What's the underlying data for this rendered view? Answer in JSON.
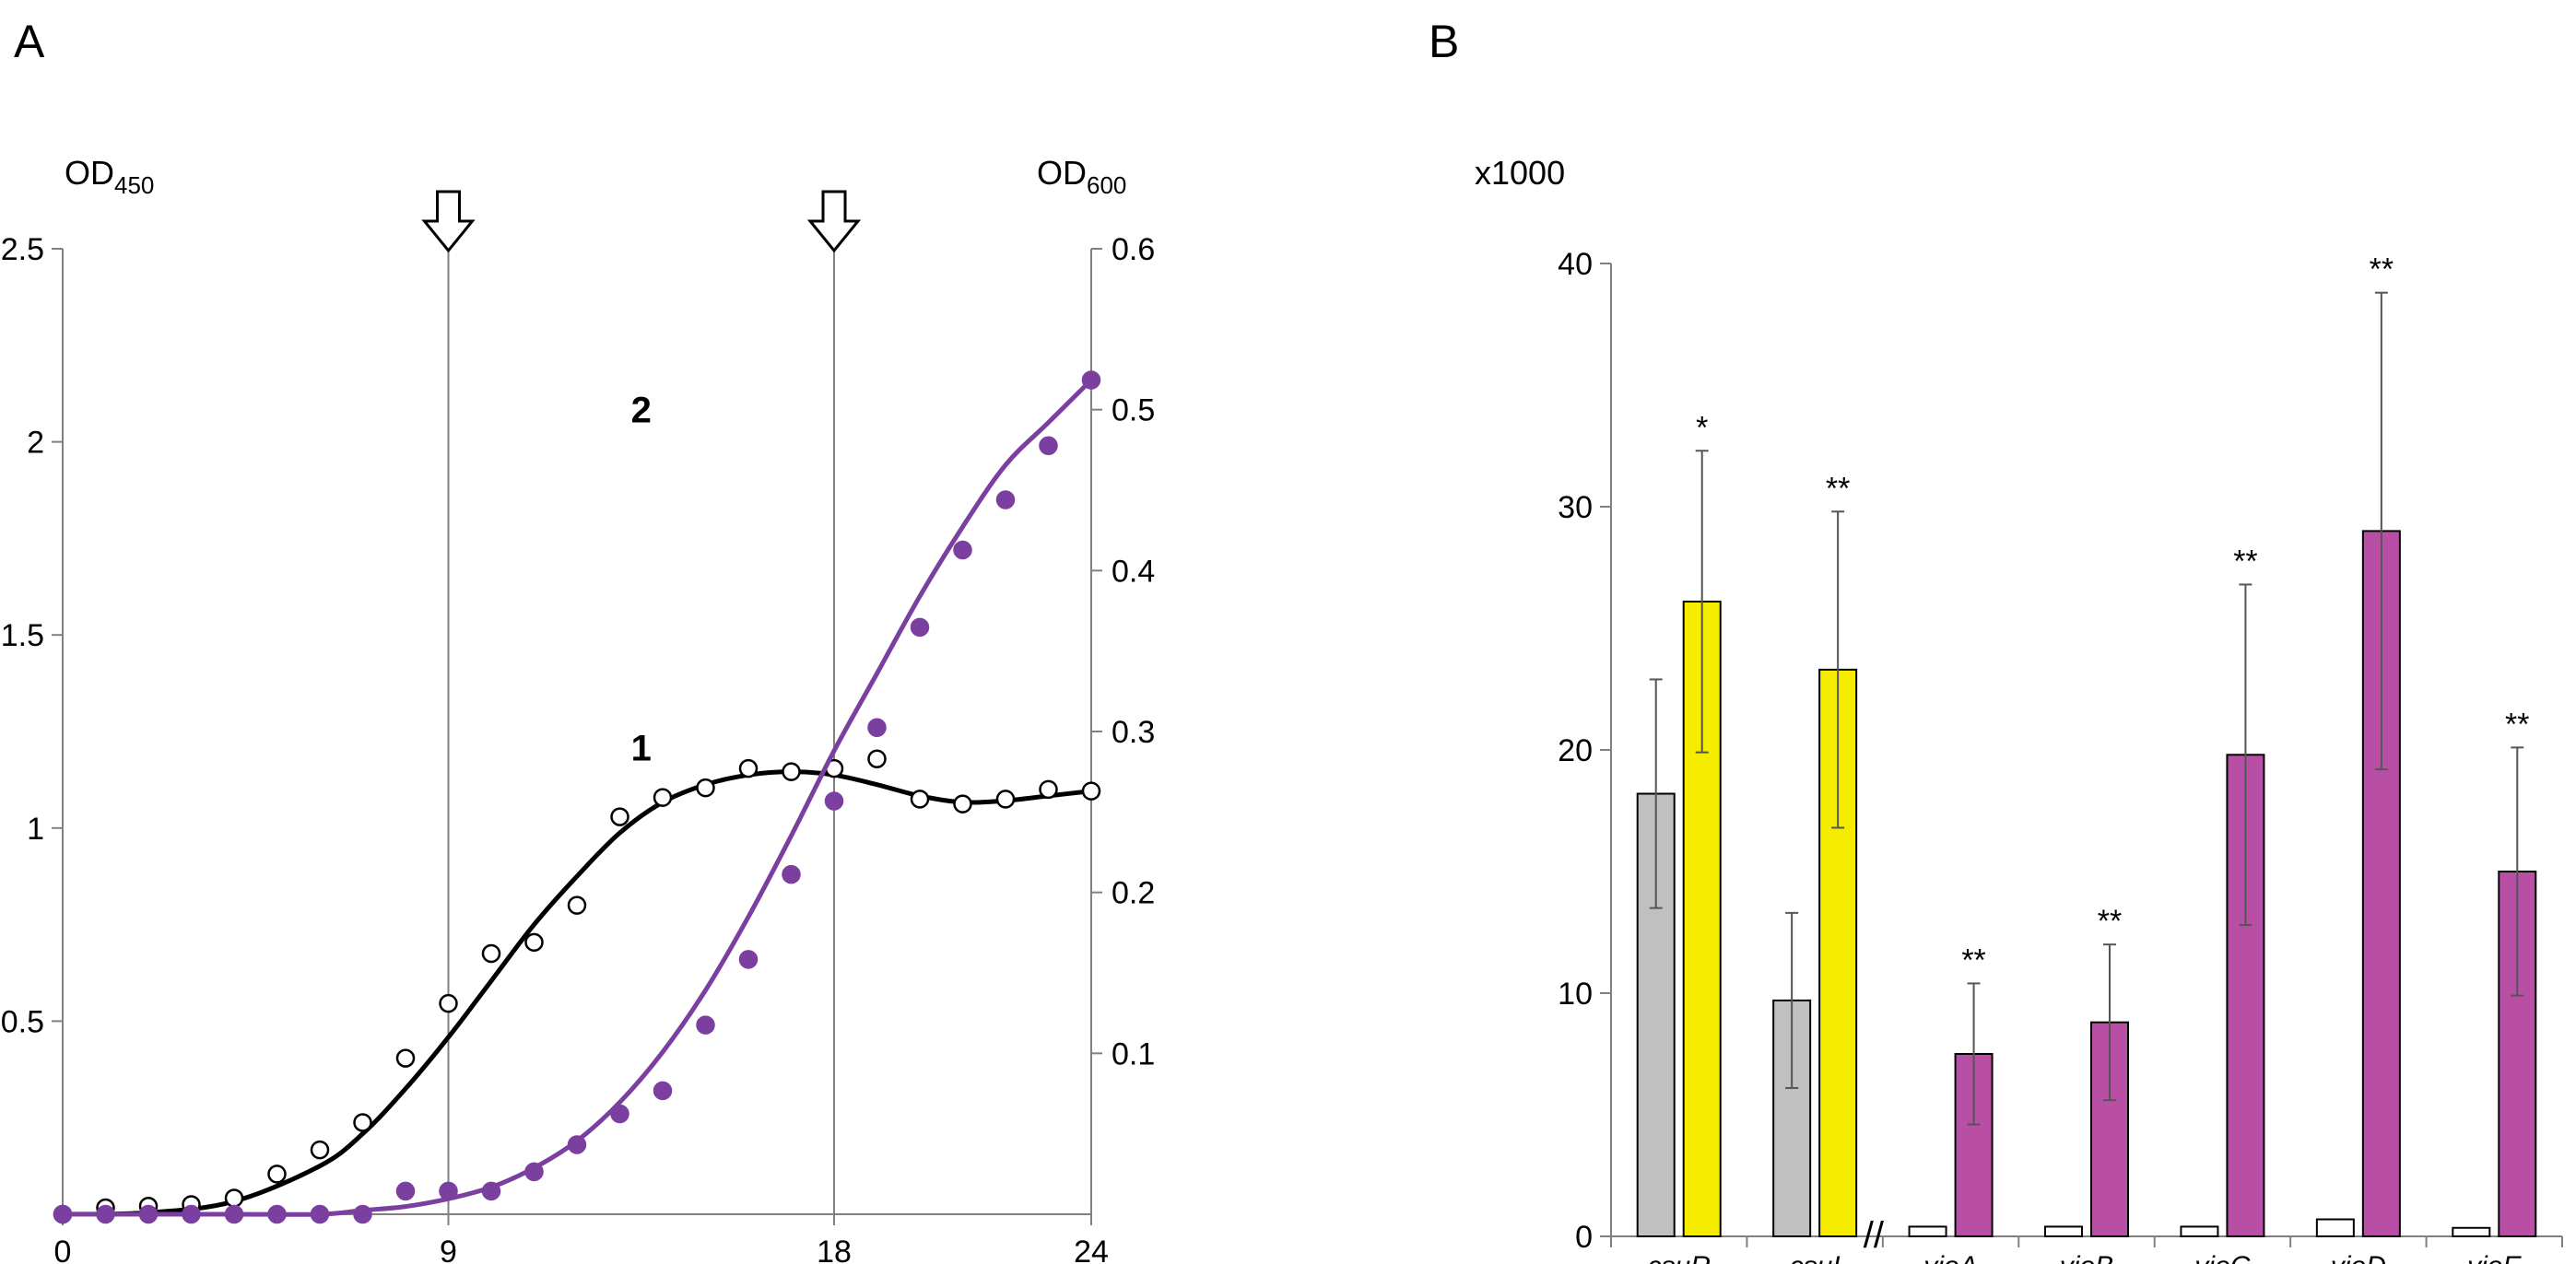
{
  "panels": [
    {
      "label": "A"
    },
    {
      "label": "B"
    }
  ],
  "chart_data": [
    {
      "type": "scatter",
      "left_axis_title": "OD",
      "left_axis_sub": "450",
      "right_axis_title": "OD",
      "right_axis_sub": "600",
      "xlim": [
        0,
        24
      ],
      "y_left_lim": [
        0,
        2.5
      ],
      "y_right_lim": [
        0,
        0.6
      ],
      "x_ticks": [
        "0",
        "9",
        "18",
        "24"
      ],
      "x_tick_values": [
        0,
        9,
        18,
        24
      ],
      "y_left_ticks": [
        "0.5",
        "1",
        "1.5",
        "2",
        "2.5"
      ],
      "y_left_tick_values": [
        0.5,
        1,
        1.5,
        2,
        2.5
      ],
      "y_right_ticks": [
        "0.1",
        "0.2",
        "0.3",
        "0.4",
        "0.5",
        "0.6"
      ],
      "y_right_tick_values": [
        0.1,
        0.2,
        0.3,
        0.4,
        0.5,
        0.6
      ],
      "markers_x": [
        9,
        18
      ],
      "series": [
        {
          "label": "1",
          "axis": "right",
          "marker": "open-circle",
          "color": "#000000",
          "label_at": [
            13.5,
            0.29
          ],
          "x": [
            0,
            1,
            2,
            3,
            4,
            5,
            6,
            7,
            8,
            9,
            10,
            11,
            12,
            13,
            14,
            15,
            16,
            17,
            18,
            19,
            20,
            21,
            22,
            23,
            24
          ],
          "y": [
            0.0,
            0.004,
            0.005,
            0.006,
            0.01,
            0.025,
            0.04,
            0.057,
            0.097,
            0.131,
            0.162,
            0.169,
            0.192,
            0.247,
            0.259,
            0.265,
            0.277,
            0.275,
            0.277,
            0.283,
            0.258,
            0.255,
            0.258,
            0.264,
            0.263
          ],
          "fit_x": [
            0,
            2,
            4,
            6,
            7,
            8,
            9,
            10,
            11,
            12,
            13,
            14,
            15,
            16,
            17,
            18,
            19,
            20,
            21,
            22,
            23,
            24
          ],
          "fit_y": [
            0.0,
            0.001,
            0.008,
            0.03,
            0.05,
            0.078,
            0.11,
            0.145,
            0.18,
            0.21,
            0.237,
            0.256,
            0.267,
            0.273,
            0.275,
            0.273,
            0.267,
            0.26,
            0.256,
            0.257,
            0.26,
            0.263
          ]
        },
        {
          "label": "2",
          "axis": "left",
          "marker": "filled-circle",
          "color": "#7b3fa0",
          "label_at": [
            13.5,
            0.5
          ],
          "x": [
            0,
            1,
            2,
            3,
            4,
            5,
            6,
            7,
            8,
            9,
            10,
            11,
            12,
            13,
            14,
            15,
            16,
            17,
            18,
            19,
            20,
            21,
            22,
            23,
            24
          ],
          "y": [
            0.0,
            0.0,
            0.0,
            0.0,
            0.0,
            0.0,
            0.0,
            0.0,
            0.06,
            0.06,
            0.06,
            0.11,
            0.18,
            0.26,
            0.32,
            0.49,
            0.66,
            0.88,
            1.07,
            1.26,
            1.52,
            1.72,
            1.85,
            1.99,
            2.16
          ],
          "fit_x": [
            0,
            2,
            4,
            6,
            7,
            8,
            9,
            10,
            11,
            12,
            13,
            14,
            15,
            16,
            17,
            18,
            19,
            20,
            21,
            22,
            23,
            24
          ],
          "fit_y": [
            0.0,
            0.0,
            0.0,
            0.0,
            0.01,
            0.02,
            0.04,
            0.07,
            0.12,
            0.19,
            0.29,
            0.42,
            0.58,
            0.77,
            0.98,
            1.2,
            1.4,
            1.6,
            1.78,
            1.94,
            2.05,
            2.16
          ]
        }
      ]
    },
    {
      "type": "bar",
      "ylabel": "x1000",
      "ylim": [
        0,
        40
      ],
      "y_ticks": [
        "0",
        "10",
        "20",
        "30",
        "40"
      ],
      "y_tick_values": [
        0,
        10,
        20,
        30,
        40
      ],
      "axis_break": "//",
      "categories": [
        "csuR",
        "csuI",
        "vioA",
        "vioB",
        "vioC",
        "vioD",
        "vioE"
      ],
      "control_colors": [
        "#c0c0c0",
        "#c0c0c0",
        "#ffffff",
        "#ffffff",
        "#ffffff",
        "#ffffff",
        "#ffffff"
      ],
      "treated_colors": [
        "#f5ec00",
        "#f5ec00",
        "#b94fa4",
        "#b94fa4",
        "#b94fa4",
        "#b94fa4",
        "#b94fa4"
      ],
      "control_values": [
        18.2,
        9.7,
        0.4,
        0.4,
        0.4,
        0.7,
        0.35
      ],
      "control_errors": [
        4.7,
        3.6,
        0.0,
        0.0,
        0.0,
        0.0,
        0.0
      ],
      "treated_values": [
        26.1,
        23.3,
        7.5,
        8.8,
        19.8,
        29.0,
        15.0
      ],
      "treated_errors": [
        6.2,
        6.5,
        2.9,
        3.2,
        7.0,
        9.8,
        5.1
      ],
      "significance": [
        "*",
        "**",
        "**",
        "**",
        "**",
        "**",
        "**"
      ]
    }
  ]
}
